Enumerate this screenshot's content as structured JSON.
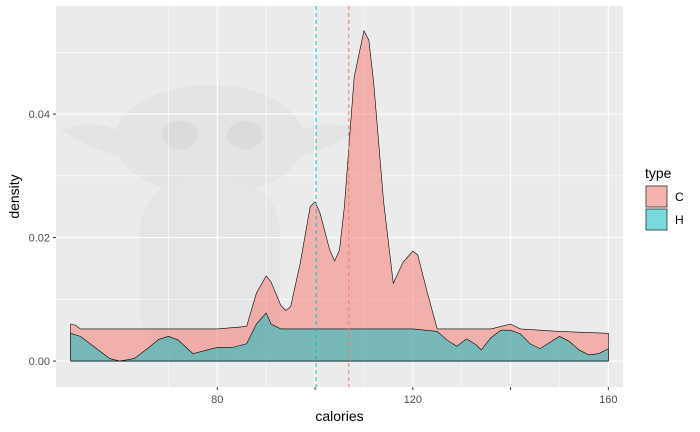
{
  "chart_data": {
    "type": "area",
    "xlabel": "calories",
    "ylabel": "density",
    "xlim": [
      47,
      163
    ],
    "ylim": [
      -0.0042,
      0.0575
    ],
    "x_ticks": [
      80,
      100,
      120,
      140,
      160
    ],
    "x_tick_labels": [
      "80",
      "",
      "120",
      "",
      "160"
    ],
    "y_ticks": [
      0.0,
      0.02,
      0.04
    ],
    "y_tick_labels": [
      "0.00",
      "0.02",
      "0.04"
    ],
    "grid": true,
    "legend": {
      "title": "type",
      "position": "right"
    },
    "series": [
      {
        "name": "C",
        "color": "#F8766D",
        "points": [
          [
            50,
            0.006
          ],
          [
            51,
            0.0058
          ],
          [
            52,
            0.0052
          ],
          [
            55,
            0.0052
          ],
          [
            60,
            0.0052
          ],
          [
            70,
            0.0052
          ],
          [
            80,
            0.0052
          ],
          [
            86,
            0.0056
          ],
          [
            88,
            0.011
          ],
          [
            90,
            0.0138
          ],
          [
            91,
            0.0128
          ],
          [
            93,
            0.009
          ],
          [
            94,
            0.0082
          ],
          [
            95,
            0.0088
          ],
          [
            97,
            0.016
          ],
          [
            99,
            0.025
          ],
          [
            100,
            0.0258
          ],
          [
            101,
            0.024
          ],
          [
            103,
            0.018
          ],
          [
            104,
            0.0162
          ],
          [
            105,
            0.018
          ],
          [
            106,
            0.025
          ],
          [
            108,
            0.046
          ],
          [
            110,
            0.0535
          ],
          [
            111,
            0.052
          ],
          [
            112,
            0.045
          ],
          [
            114,
            0.026
          ],
          [
            116,
            0.0126
          ],
          [
            118,
            0.016
          ],
          [
            120,
            0.0178
          ],
          [
            121,
            0.0172
          ],
          [
            123,
            0.011
          ],
          [
            125,
            0.0052
          ],
          [
            130,
            0.0052
          ],
          [
            136,
            0.0052
          ],
          [
            140,
            0.006
          ],
          [
            142,
            0.0052
          ],
          [
            150,
            0.0048
          ],
          [
            160,
            0.0045
          ]
        ]
      },
      {
        "name": "H",
        "color": "#00BFC4",
        "points": [
          [
            50,
            0.0045
          ],
          [
            52,
            0.004
          ],
          [
            55,
            0.0022
          ],
          [
            58,
            0.0004
          ],
          [
            60,
            0.0
          ],
          [
            63,
            0.0004
          ],
          [
            66,
            0.0022
          ],
          [
            68,
            0.0035
          ],
          [
            70,
            0.004
          ],
          [
            72,
            0.0034
          ],
          [
            75,
            0.0012
          ],
          [
            78,
            0.0018
          ],
          [
            80,
            0.0022
          ],
          [
            83,
            0.0022
          ],
          [
            86,
            0.0028
          ],
          [
            88,
            0.006
          ],
          [
            90,
            0.0078
          ],
          [
            91,
            0.006
          ],
          [
            93,
            0.0052
          ],
          [
            96,
            0.0052
          ],
          [
            100,
            0.0052
          ],
          [
            110,
            0.0052
          ],
          [
            120,
            0.0052
          ],
          [
            125,
            0.0048
          ],
          [
            127,
            0.0034
          ],
          [
            129,
            0.0024
          ],
          [
            131,
            0.0036
          ],
          [
            133,
            0.0026
          ],
          [
            134,
            0.0018
          ],
          [
            136,
            0.0038
          ],
          [
            138,
            0.005
          ],
          [
            140,
            0.005
          ],
          [
            142,
            0.0044
          ],
          [
            144,
            0.0028
          ],
          [
            146,
            0.002
          ],
          [
            148,
            0.003
          ],
          [
            150,
            0.004
          ],
          [
            152,
            0.0032
          ],
          [
            154,
            0.0018
          ],
          [
            156,
            0.001
          ],
          [
            158,
            0.0012
          ],
          [
            160,
            0.002
          ]
        ]
      }
    ],
    "vlines": [
      {
        "name": "C",
        "x": 106.9,
        "color": "#F8766D",
        "style": "dashed"
      },
      {
        "name": "H",
        "x": 100.2,
        "color": "#00BFC4",
        "style": "dashed"
      }
    ]
  }
}
